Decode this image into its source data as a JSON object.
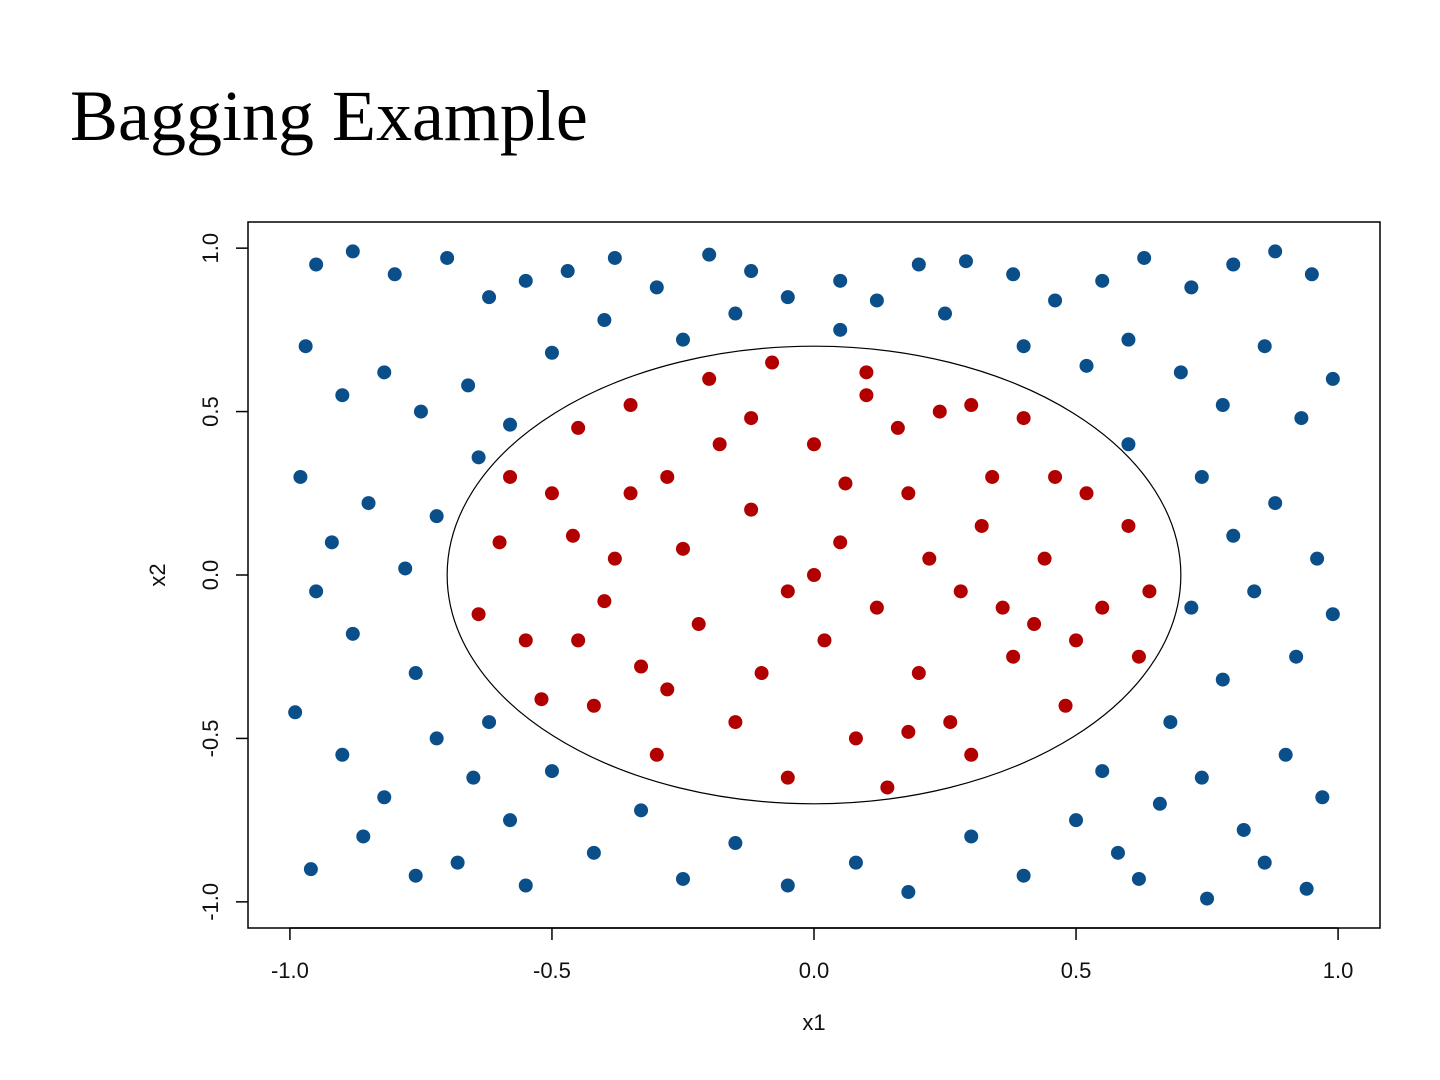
{
  "title": "Bagging Example",
  "chart_data": {
    "type": "scatter",
    "x_label": "x1",
    "y_label": "x2",
    "xlim": [
      -1.08,
      1.08
    ],
    "ylim": [
      -1.08,
      1.08
    ],
    "xticks": [
      {
        "value": -1,
        "label": "-1.0"
      },
      {
        "value": -0.5,
        "label": "-0.5"
      },
      {
        "value": 0,
        "label": "0.0"
      },
      {
        "value": 0.5,
        "label": "0.5"
      },
      {
        "value": 1,
        "label": "1.0"
      }
    ],
    "yticks": [
      {
        "value": -1,
        "label": "-1.0"
      },
      {
        "value": -0.5,
        "label": "-0.5"
      },
      {
        "value": 0,
        "label": "0.0"
      },
      {
        "value": 0.5,
        "label": "0.5"
      },
      {
        "value": 1,
        "label": "1.0"
      }
    ],
    "boundary": {
      "x": 0,
      "y": 0,
      "r": 0.7,
      "color": "#000000"
    },
    "series": [
      {
        "color": "#0b4f8a",
        "x": [
          -0.95,
          -0.88,
          -0.8,
          -0.7,
          -0.62,
          -0.55,
          -0.47,
          -0.38,
          -0.3,
          -0.2,
          -0.12,
          -0.05,
          0.05,
          0.12,
          0.2,
          0.29,
          0.38,
          0.46,
          0.55,
          0.63,
          0.72,
          0.8,
          0.88,
          0.95,
          -0.97,
          -0.9,
          -0.82,
          -0.75,
          -0.66,
          -0.58,
          -0.5,
          -0.4,
          -0.25,
          -0.15,
          0.05,
          0.25,
          0.4,
          0.52,
          0.6,
          0.7,
          0.78,
          0.86,
          0.93,
          0.99,
          -0.98,
          -0.92,
          -0.85,
          -0.78,
          -0.72,
          -0.95,
          -0.88,
          -0.76,
          0.74,
          0.8,
          0.88,
          0.96,
          0.72,
          0.84,
          0.92,
          0.99,
          0.78,
          -0.99,
          -0.9,
          -0.82,
          -0.72,
          -0.65,
          -0.58,
          -0.5,
          -0.42,
          -0.33,
          -0.25,
          -0.15,
          -0.05,
          0.08,
          0.18,
          0.3,
          0.4,
          0.5,
          0.58,
          0.66,
          0.74,
          0.82,
          0.9,
          0.97,
          -0.96,
          -0.86,
          -0.76,
          -0.68,
          -0.55,
          0.62,
          0.75,
          0.86,
          0.94,
          0.55,
          0.68,
          -0.62,
          -0.64,
          0.6
        ],
        "y": [
          0.95,
          0.99,
          0.92,
          0.97,
          0.85,
          0.9,
          0.93,
          0.97,
          0.88,
          0.98,
          0.93,
          0.85,
          0.9,
          0.84,
          0.95,
          0.96,
          0.92,
          0.84,
          0.9,
          0.97,
          0.88,
          0.95,
          0.99,
          0.92,
          0.7,
          0.55,
          0.62,
          0.5,
          0.58,
          0.46,
          0.68,
          0.78,
          0.72,
          0.8,
          0.75,
          0.8,
          0.7,
          0.64,
          0.72,
          0.62,
          0.52,
          0.7,
          0.48,
          0.6,
          0.3,
          0.1,
          0.22,
          0.02,
          0.18,
          -0.05,
          -0.18,
          -0.3,
          0.3,
          0.12,
          0.22,
          0.05,
          -0.1,
          -0.05,
          -0.25,
          -0.12,
          -0.32,
          -0.42,
          -0.55,
          -0.68,
          -0.5,
          -0.62,
          -0.75,
          -0.6,
          -0.85,
          -0.72,
          -0.93,
          -0.82,
          -0.95,
          -0.88,
          -0.97,
          -0.8,
          -0.92,
          -0.75,
          -0.85,
          -0.7,
          -0.62,
          -0.78,
          -0.55,
          -0.68,
          -0.9,
          -0.8,
          -0.92,
          -0.88,
          -0.95,
          -0.93,
          -0.99,
          -0.88,
          -0.96,
          -0.6,
          -0.45,
          -0.45,
          0.36,
          0.4
        ]
      },
      {
        "color": "#b20000",
        "x": [
          -0.6,
          -0.55,
          -0.5,
          -0.45,
          -0.42,
          -0.38,
          -0.35,
          -0.3,
          -0.28,
          -0.22,
          -0.2,
          -0.15,
          -0.12,
          -0.08,
          -0.05,
          0.0,
          0.02,
          0.05,
          0.08,
          0.1,
          0.14,
          0.18,
          0.2,
          0.24,
          0.28,
          0.3,
          0.34,
          0.38,
          0.4,
          0.44,
          0.48,
          0.52,
          0.55,
          0.6,
          0.64,
          0.62,
          -0.64,
          -0.58,
          -0.52,
          -0.46,
          -0.4,
          -0.33,
          -0.25,
          -0.18,
          -0.1,
          0.0,
          0.06,
          0.12,
          0.16,
          0.22,
          0.26,
          0.32,
          0.36,
          0.42,
          0.46,
          0.5,
          -0.05,
          -0.28,
          -0.35,
          0.1,
          -0.12,
          0.18,
          0.3,
          -0.45
        ],
        "y": [
          0.1,
          -0.2,
          0.25,
          0.45,
          -0.4,
          0.05,
          0.52,
          -0.55,
          0.3,
          -0.15,
          0.6,
          -0.45,
          0.2,
          0.65,
          -0.62,
          0.4,
          -0.2,
          0.1,
          -0.5,
          0.55,
          -0.65,
          0.25,
          -0.3,
          0.5,
          -0.05,
          -0.55,
          0.3,
          -0.25,
          0.48,
          0.05,
          -0.4,
          0.25,
          -0.1,
          0.15,
          -0.05,
          -0.25,
          -0.12,
          0.3,
          -0.38,
          0.12,
          -0.08,
          -0.28,
          0.08,
          0.4,
          -0.3,
          0.0,
          0.28,
          -0.1,
          0.45,
          0.05,
          -0.45,
          0.15,
          -0.1,
          -0.15,
          0.3,
          -0.2,
          -0.05,
          -0.35,
          0.25,
          0.62,
          0.48,
          -0.48,
          0.52,
          -0.2
        ]
      }
    ]
  }
}
